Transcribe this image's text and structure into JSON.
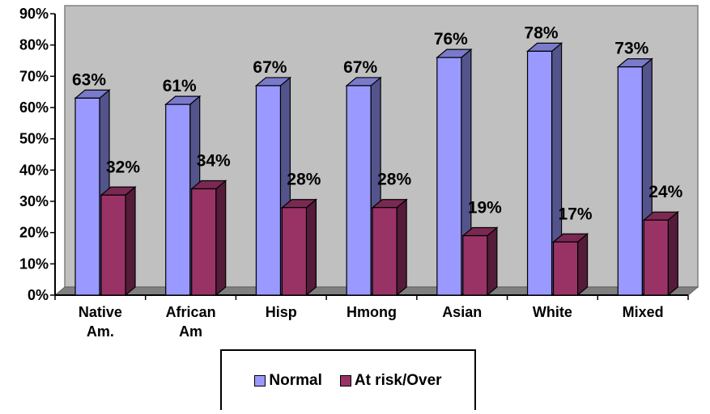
{
  "chart_data": {
    "type": "bar",
    "categories": [
      [
        "Native",
        "Am."
      ],
      [
        "African",
        "Am"
      ],
      [
        "Hisp"
      ],
      [
        "Hmong"
      ],
      [
        "Asian"
      ],
      [
        "White"
      ],
      [
        "Mixed"
      ]
    ],
    "series": [
      {
        "name": "Normal",
        "values": [
          63,
          61,
          67,
          67,
          76,
          78,
          73
        ],
        "labels": [
          "63%",
          "61%",
          "67%",
          "67%",
          "76%",
          "78%",
          "73%"
        ],
        "color": "#9999ff"
      },
      {
        "name": "At risk/Over",
        "values": [
          32,
          34,
          28,
          28,
          19,
          17,
          24
        ],
        "labels": [
          "32%",
          "34%",
          "28%",
          "28%",
          "19%",
          "17%",
          "24%"
        ],
        "color": "#993366"
      }
    ],
    "yticks": [
      "0%",
      "10%",
      "20%",
      "30%",
      "40%",
      "50%",
      "60%",
      "70%",
      "80%",
      "90%"
    ],
    "ylim": [
      0,
      90
    ],
    "grid": false,
    "legend_position": "bottom",
    "wall_color": "#c0c0c0"
  }
}
